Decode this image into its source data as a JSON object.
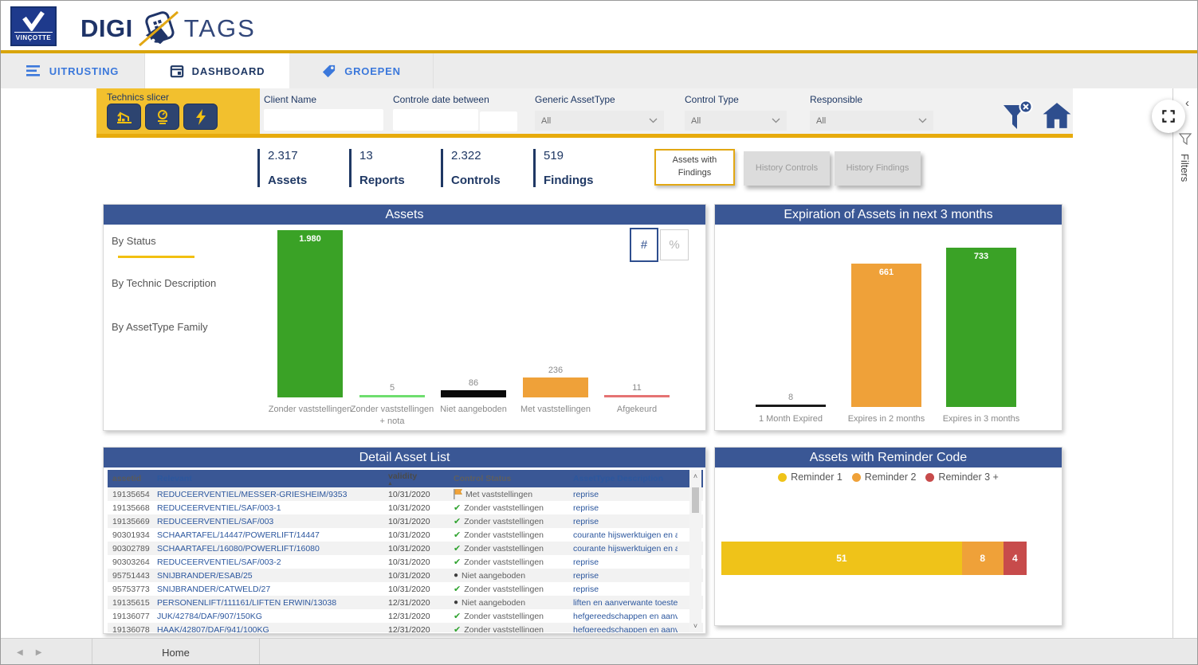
{
  "brand": {
    "logo_text": "VINÇOTTE",
    "title_left": "DIGI",
    "title_right": "TAGS"
  },
  "tabs": [
    {
      "label": "UITRUSTING",
      "icon": "list-icon",
      "active": false
    },
    {
      "label": "DASHBOARD",
      "icon": "calendar-icon",
      "active": true
    },
    {
      "label": "GROEPEN",
      "icon": "tag-icon",
      "active": false
    }
  ],
  "filter_bar": {
    "technics_slicer": {
      "label": "Technics slicer",
      "buttons": [
        "crane-icon",
        "gauge-icon",
        "lightning-icon"
      ]
    },
    "client_name": {
      "label": "Client Name",
      "value": ""
    },
    "controle_date": {
      "label": "Controle date between",
      "value_from": "",
      "value_to": ""
    },
    "generic_assettype": {
      "label": "Generic AssetType",
      "value": "All"
    },
    "control_type": {
      "label": "Control Type",
      "value": "All"
    },
    "responsible": {
      "label": "Responsible",
      "value": "All"
    }
  },
  "kpis": [
    {
      "value": "2.317",
      "label": "Assets"
    },
    {
      "value": "13",
      "label": "Reports"
    },
    {
      "value": "2.322",
      "label": "Controls"
    },
    {
      "value": "519",
      "label": "Findings"
    }
  ],
  "action_buttons": [
    {
      "label": "Assets with Findings",
      "active": true
    },
    {
      "label": "History Controls",
      "active": false
    },
    {
      "label": "History Findings",
      "active": false
    }
  ],
  "assets_panel": {
    "title": "Assets",
    "nav": [
      {
        "label": "By Status",
        "active": true
      },
      {
        "label": "By Technic Description",
        "active": false
      },
      {
        "label": "By AssetType Family",
        "active": false
      }
    ],
    "toggle": {
      "count_label": "#",
      "percent_label": "%",
      "selected": "#"
    }
  },
  "expiration_panel": {
    "title": "Expiration of Assets in next 3 months"
  },
  "detail_panel": {
    "title": "Detail Asset List",
    "columns": [
      "assetid",
      "Relevant",
      "validity",
      "Control Status",
      "AssetType Description"
    ],
    "sort_column": "validity",
    "rows": [
      {
        "assetid": "19135654",
        "relevant": "REDUCEERVENTIEL/MESSER-GRIESHEIM/9353",
        "validity": "10/31/2020",
        "status_icon": "flag",
        "status": "Met vaststellingen",
        "assettype": "reprise"
      },
      {
        "assetid": "19135668",
        "relevant": "REDUCEERVENTIEL/SAF/003-1",
        "validity": "10/31/2020",
        "status_icon": "check",
        "status": "Zonder vaststellingen",
        "assettype": "reprise"
      },
      {
        "assetid": "19135669",
        "relevant": "REDUCEERVENTIEL/SAF/003",
        "validity": "10/31/2020",
        "status_icon": "check",
        "status": "Zonder vaststellingen",
        "assettype": "reprise"
      },
      {
        "assetid": "90301934",
        "relevant": "SCHAARTAFEL/14447/POWERLIFT/14447",
        "validity": "10/31/2020",
        "status_icon": "check",
        "status": "Zonder vaststellingen",
        "assettype": "courante hijswerktuigen en aan"
      },
      {
        "assetid": "90302789",
        "relevant": "SCHAARTAFEL/16080/POWERLIFT/16080",
        "validity": "10/31/2020",
        "status_icon": "check",
        "status": "Zonder vaststellingen",
        "assettype": "courante hijswerktuigen en aan"
      },
      {
        "assetid": "90303264",
        "relevant": "REDUCEERVENTIEL/SAF/003-2",
        "validity": "10/31/2020",
        "status_icon": "check",
        "status": "Zonder vaststellingen",
        "assettype": "reprise"
      },
      {
        "assetid": "95751443",
        "relevant": "SNIJBRANDER/ESAB/25",
        "validity": "10/31/2020",
        "status_icon": "circle",
        "status": "Niet aangeboden",
        "assettype": "reprise"
      },
      {
        "assetid": "95753773",
        "relevant": "SNIJBRANDER/CATWELD/27",
        "validity": "10/31/2020",
        "status_icon": "check",
        "status": "Zonder vaststellingen",
        "assettype": "reprise"
      },
      {
        "assetid": "19135615",
        "relevant": "PERSONENLIFT/111161/LIFTEN ERWIN/13038",
        "validity": "12/31/2020",
        "status_icon": "circle",
        "status": "Niet aangeboden",
        "assettype": "liften en aanverwante toestell"
      },
      {
        "assetid": "19136077",
        "relevant": "JUK/42784/DAF/907/150KG",
        "validity": "12/31/2020",
        "status_icon": "check",
        "status": "Zonder vaststellingen",
        "assettype": "hefgereedschappen en aanverwan"
      },
      {
        "assetid": "19136078",
        "relevant": "HAAK/42807/DAF/941/100KG",
        "validity": "12/31/2020",
        "status_icon": "check",
        "status": "Zonder vaststellingen",
        "assettype": "hefgereedschappen en aanverwan"
      }
    ]
  },
  "reminder_panel": {
    "title": "Assets with Reminder Code"
  },
  "right_pane": {
    "filters_label": "Filters"
  },
  "bottom_bar": {
    "home_label": "Home"
  },
  "colors": {
    "navy": "#1F3864",
    "icon_navy": "#2E4E8E",
    "panel_blue": "#3A5795",
    "tab_blue": "#3B78DB",
    "gold": "#D9A50B",
    "slicer_yellow": "#F2C02E",
    "accent_yellow": "#F2C011",
    "green": "#3AA226",
    "orange": "#EFA139"
  },
  "chart_data": [
    {
      "id": "assets_by_status",
      "type": "bar",
      "title": "Assets",
      "categories": [
        "Zonder vaststellingen",
        "Zonder vaststellingen + nota",
        "Niet aangeboden",
        "Met vaststellingen",
        "Afgekeurd"
      ],
      "values": [
        1980,
        5,
        86,
        236,
        11
      ],
      "value_labels": [
        "1.980",
        "5",
        "86",
        "236",
        "11"
      ],
      "colors": [
        "#3AA226",
        "#6EDE6E",
        "#0A0A0A",
        "#EFA139",
        "#E57373"
      ],
      "xlabel": "",
      "ylabel": "",
      "ylim": [
        0,
        1980
      ],
      "grid": false,
      "legend": false
    },
    {
      "id": "expiration_next_3_months",
      "type": "bar",
      "title": "Expiration of Assets in next 3 months",
      "categories": [
        "1 Month Expired",
        "Expires in 2 months",
        "Expires in 3 months"
      ],
      "values": [
        8,
        661,
        733
      ],
      "value_labels": [
        "8",
        "661",
        "733"
      ],
      "colors": [
        "#1A1A1A",
        "#EFA139",
        "#3AA226"
      ],
      "xlabel": "",
      "ylabel": "",
      "ylim": [
        0,
        733
      ],
      "grid": false,
      "legend": false
    },
    {
      "id": "assets_with_reminder_code",
      "type": "stacked-bar-horizontal",
      "title": "Assets with Reminder Code",
      "series": [
        {
          "name": "Reminder 1",
          "value": 51,
          "color": "#EFC319"
        },
        {
          "name": "Reminder 2",
          "value": 8,
          "color": "#EFA139"
        },
        {
          "name": "Reminder 3 +",
          "value": 4,
          "color": "#C74B4B"
        }
      ],
      "legend": true,
      "legend_position": "top"
    }
  ]
}
